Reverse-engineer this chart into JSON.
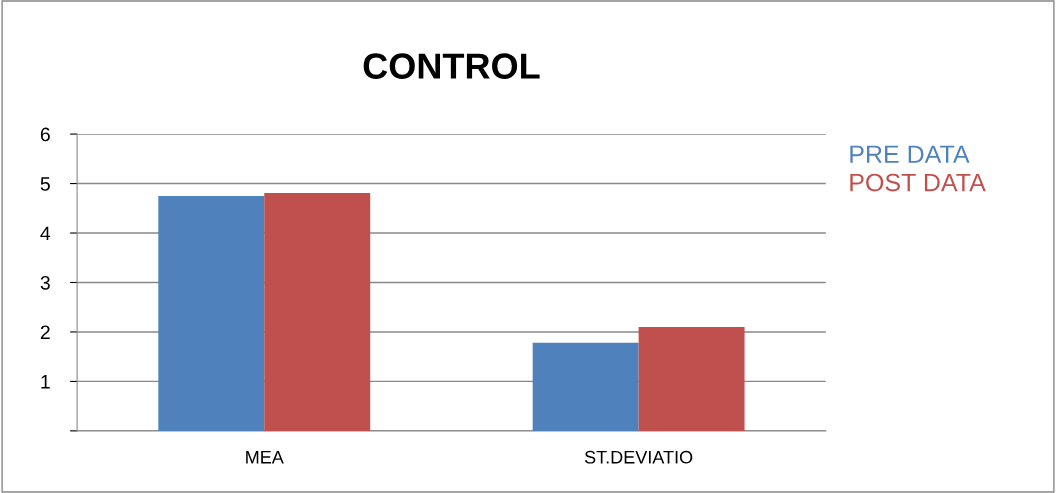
{
  "chart_data": {
    "type": "bar",
    "title": "CONTROL",
    "categories": [
      "MEA",
      "ST.DEVIATIO"
    ],
    "series": [
      {
        "name": "PRE DATA",
        "color": "#4f81bd",
        "values": [
          4.75,
          1.78
        ]
      },
      {
        "name": "POST DATA",
        "color": "#c0504d",
        "values": [
          4.81,
          2.1
        ]
      }
    ],
    "ylim": [
      0,
      6
    ],
    "yticks": [
      {
        "value": 0,
        "label": null
      },
      1,
      2,
      3,
      4,
      5,
      6
    ],
    "grid": "y",
    "legend": "top right"
  }
}
